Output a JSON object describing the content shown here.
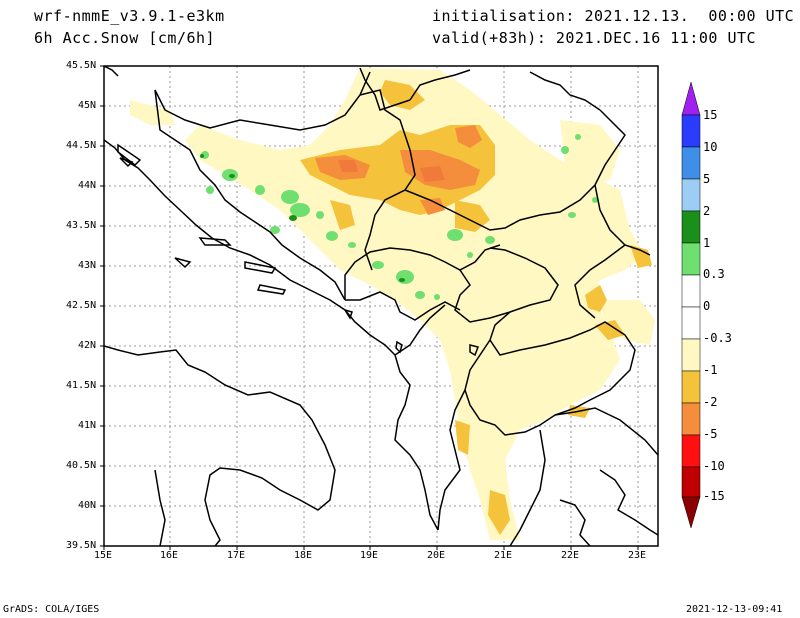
{
  "header": {
    "model": "wrf-nmmE_v3.9.1-e3km",
    "field": "6h Acc.Snow [cm/6h]",
    "init": "initialisation: 2021.12.13.  00:00 UTC",
    "valid": "valid(+83h): 2021.DEC.16 11:00 UTC"
  },
  "map": {
    "lon_labels": [
      "15E",
      "16E",
      "17E",
      "18E",
      "19E",
      "20E",
      "21E",
      "22E",
      "23E"
    ],
    "lat_labels": [
      "45.5N",
      "45N",
      "44.5N",
      "44N",
      "43.5N",
      "43N",
      "42.5N",
      "42N",
      "41.5N",
      "41N",
      "40.5N",
      "40N",
      "39.5N"
    ],
    "lon_range": [
      15,
      23.3
    ],
    "lat_range": [
      39.5,
      45.5
    ]
  },
  "colorbar": {
    "labels": [
      "15",
      "10",
      "5",
      "2",
      "1",
      "0.3",
      "0",
      "-0.3",
      "-1",
      "-2",
      "-5",
      "-10",
      "-15"
    ],
    "colors": [
      "#a020f0",
      "#2b3cff",
      "#3f8fe8",
      "#9ccdf5",
      "#1a8f1a",
      "#6fe06f",
      "#ffffff",
      "#fff8c2",
      "#f5c23c",
      "#f58e3c",
      "#ff1010",
      "#c00000",
      "#8b0000"
    ]
  },
  "footer": {
    "left": "GrADS: COLA/IGES",
    "right": "2021-12-13-09:41"
  }
}
